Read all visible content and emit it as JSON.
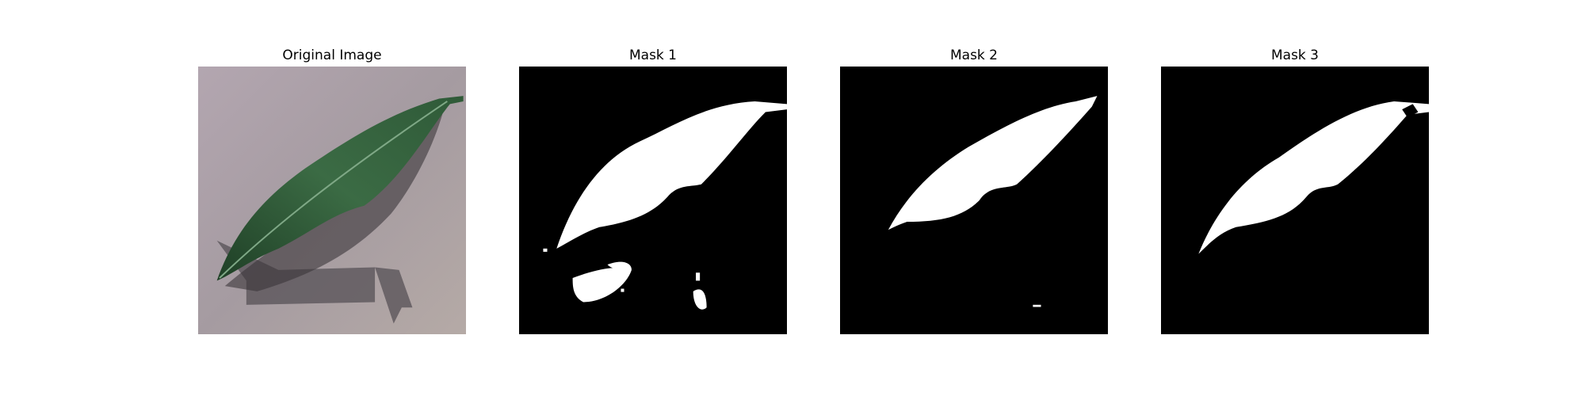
{
  "figure": {
    "panels": [
      {
        "title": "Original Image"
      },
      {
        "title": "Mask 1"
      },
      {
        "title": "Mask 2"
      },
      {
        "title": "Mask 3"
      }
    ]
  }
}
